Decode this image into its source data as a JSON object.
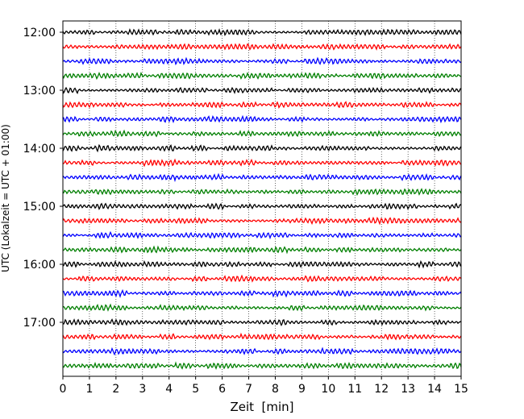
{
  "chart_data": {
    "type": "line",
    "title": "",
    "xlabel": "Zeit  [min]",
    "ylabel": "UTC (Lokalzeit = UTC + 01:00)",
    "xlim": [
      0,
      15
    ],
    "xticks": [
      0,
      1,
      2,
      3,
      4,
      5,
      6,
      7,
      8,
      9,
      10,
      11,
      12,
      13,
      14,
      15
    ],
    "grid": "vertical dotted",
    "row_minutes": 15,
    "start_time": "12:00",
    "hour_labels": [
      "12:00",
      "13:00",
      "14:00",
      "15:00",
      "16:00",
      "17:00"
    ],
    "row_colors": [
      "#000000",
      "#ff0000",
      "#0000ff",
      "#007f00"
    ],
    "rows": [
      {
        "time": "12:00",
        "color": "#000000"
      },
      {
        "time": "12:15",
        "color": "#ff0000"
      },
      {
        "time": "12:30",
        "color": "#0000ff"
      },
      {
        "time": "12:45",
        "color": "#007f00"
      },
      {
        "time": "13:00",
        "color": "#000000"
      },
      {
        "time": "13:15",
        "color": "#ff0000"
      },
      {
        "time": "13:30",
        "color": "#0000ff"
      },
      {
        "time": "13:45",
        "color": "#007f00"
      },
      {
        "time": "14:00",
        "color": "#000000"
      },
      {
        "time": "14:15",
        "color": "#ff0000"
      },
      {
        "time": "14:30",
        "color": "#0000ff"
      },
      {
        "time": "14:45",
        "color": "#007f00"
      },
      {
        "time": "15:00",
        "color": "#000000"
      },
      {
        "time": "15:15",
        "color": "#ff0000"
      },
      {
        "time": "15:30",
        "color": "#0000ff"
      },
      {
        "time": "15:45",
        "color": "#007f00"
      },
      {
        "time": "16:00",
        "color": "#000000"
      },
      {
        "time": "16:15",
        "color": "#ff0000"
      },
      {
        "time": "16:30",
        "color": "#0000ff"
      },
      {
        "time": "16:45",
        "color": "#007f00"
      },
      {
        "time": "17:00",
        "color": "#000000"
      },
      {
        "time": "17:15",
        "color": "#ff0000"
      },
      {
        "time": "17:30",
        "color": "#0000ff"
      },
      {
        "time": "17:45",
        "color": "#007f00"
      }
    ]
  }
}
